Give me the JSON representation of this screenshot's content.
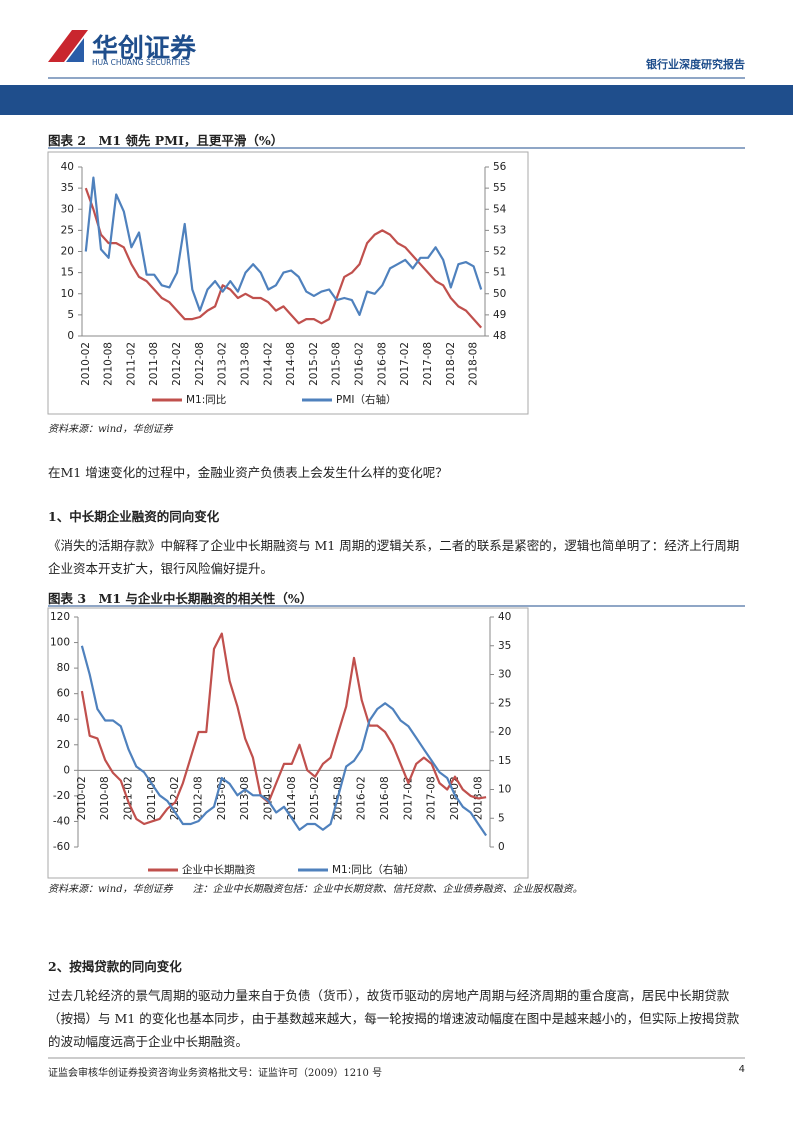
{
  "header": {
    "brand": "华创证券",
    "brand_en": "HUA CHUANG SECURITIES",
    "report_type": "银行业深度研究报告"
  },
  "chart_data": [
    {
      "type": "line",
      "title": "图表 2　M1 领先 PMI，且更平滑（%）",
      "categories": [
        "2010-02",
        null,
        null,
        "2010-08",
        null,
        null,
        "2011-02",
        null,
        null,
        "2011-08",
        null,
        null,
        "2012-02",
        null,
        null,
        "2012-08",
        null,
        null,
        "2013-02",
        null,
        null,
        "2013-08",
        null,
        null,
        "2014-02",
        null,
        null,
        "2014-08",
        null,
        null,
        "2015-02",
        null,
        null,
        "2015-08",
        null,
        null,
        "2016-02",
        null,
        null,
        "2016-08",
        null,
        null,
        "2017-02",
        null,
        null,
        "2017-08",
        null,
        null,
        "2018-02",
        null,
        null,
        "2018-08",
        null
      ],
      "series": [
        {
          "name": "M1:同比",
          "color": "#c0504d",
          "values": [
            35,
            30,
            24,
            22,
            22,
            21,
            17,
            14,
            13,
            11,
            9,
            8,
            6,
            4,
            4,
            4.5,
            6,
            7,
            12,
            11,
            9,
            10,
            9,
            9,
            8,
            6,
            7,
            5,
            3,
            4,
            4,
            3,
            4,
            9,
            14,
            15,
            17,
            22,
            24,
            25,
            24,
            22,
            21,
            19,
            17,
            15,
            13,
            12,
            9,
            7,
            6,
            4,
            2
          ]
        },
        {
          "name": "PMI（右轴）",
          "color": "#4f81bd",
          "axis": "y2",
          "values": [
            52,
            55.5,
            52.1,
            51.7,
            54.7,
            53.9,
            52.2,
            52.9,
            50.9,
            50.9,
            50.4,
            50.3,
            51,
            53.3,
            50.2,
            49.2,
            50.2,
            50.6,
            50.1,
            50.6,
            50.1,
            51,
            51.4,
            51,
            50.2,
            50.4,
            51,
            51.1,
            50.8,
            50.1,
            49.9,
            50.1,
            50.2,
            49.7,
            49.8,
            49.7,
            49,
            50.1,
            50,
            50.4,
            51.2,
            51.4,
            51.6,
            51.2,
            51.7,
            51.7,
            52.2,
            51.6,
            50.3,
            51.4,
            51.5,
            51.3,
            50.2
          ]
        }
      ],
      "ylim": [
        0,
        40
      ],
      "yticks": [
        0,
        5,
        10,
        15,
        20,
        25,
        30,
        35,
        40
      ],
      "y2lim": [
        48,
        56
      ],
      "y2ticks": [
        48,
        49,
        50,
        51,
        52,
        53,
        54,
        55,
        56
      ],
      "grid": false
    },
    {
      "type": "line",
      "title": "图表 3　M1 与企业中长期融资的相关性（%）",
      "categories": [
        "2010-02",
        null,
        null,
        "2010-08",
        null,
        null,
        "2011-02",
        null,
        null,
        "2011-08",
        null,
        null,
        "2012-02",
        null,
        null,
        "2012-08",
        null,
        null,
        "2013-02",
        null,
        null,
        "2013-08",
        null,
        null,
        "2014-02",
        null,
        null,
        "2014-08",
        null,
        null,
        "2015-02",
        null,
        null,
        "2015-08",
        null,
        null,
        "2016-02",
        null,
        null,
        "2016-08",
        null,
        null,
        "2017-02",
        null,
        null,
        "2017-08",
        null,
        null,
        "2018-02",
        null,
        null,
        "2018-08",
        null
      ],
      "series": [
        {
          "name": "企业中长期融资",
          "color": "#c0504d",
          "values": [
            62,
            27,
            25,
            8,
            -2,
            -8,
            -25,
            -38,
            -42,
            -40,
            -38,
            -30,
            -25,
            -10,
            10,
            30,
            30,
            95,
            107,
            70,
            50,
            25,
            10,
            -20,
            -25,
            -10,
            5,
            5,
            20,
            0,
            -5,
            5,
            10,
            30,
            50,
            88,
            55,
            35,
            35,
            30,
            20,
            5,
            -10,
            5,
            10,
            5,
            -10,
            -15,
            -5,
            -15,
            -20,
            -22,
            -21
          ]
        },
        {
          "name": "M1:同比（右轴）",
          "color": "#4f81bd",
          "axis": "y2",
          "values": [
            35,
            30,
            24,
            22,
            22,
            21,
            17,
            14,
            13,
            11,
            9,
            8,
            6,
            4,
            4,
            4.5,
            6,
            7,
            12,
            11,
            9,
            10,
            9,
            9,
            8,
            6,
            7,
            5,
            3,
            4,
            4,
            3,
            4,
            9,
            14,
            15,
            17,
            22,
            24,
            25,
            24,
            22,
            21,
            19,
            17,
            15,
            13,
            12,
            9,
            7,
            6,
            4,
            2
          ]
        }
      ],
      "ylim": [
        -60,
        120
      ],
      "yticks": [
        -60,
        -40,
        -20,
        0,
        20,
        40,
        60,
        80,
        100,
        120
      ],
      "y2lim": [
        0,
        40
      ],
      "y2ticks": [
        0,
        5,
        10,
        15,
        20,
        25,
        30,
        35,
        40
      ],
      "grid": false
    }
  ],
  "sources": [
    "资料来源：wind，华创证券",
    "资料来源：wind，华创证券　　注：企业中长期融资包括：企业中长期贷款、信托贷款、企业债券融资、企业股权融资。"
  ],
  "paragraphs": [
    "在M1 增速变化的过程中，金融业资产负债表上会发生什么样的变化呢？",
    "《消失的活期存款》中解释了企业中长期融资与 M1 周期的逻辑关系，二者的联系是紧密的，逻辑也简单明了：经济上行周期企业资本开支扩大，银行风险偏好提升。",
    "过去几轮经济的景气周期的驱动力量来自于负债（货币），故货币驱动的房地产周期与经济周期的重合度高，居民中长期贷款（按揭）与 M1 的变化也基本同步，由于基数越来越大，每一轮按揭的增速波动幅度在图中是越来越小的，但实际上按揭贷款的波动幅度远高于企业中长期融资。"
  ],
  "headings": [
    "1、中长期企业融资的同向变化",
    "2、按揭贷款的同向变化"
  ],
  "footer": {
    "text": "证监会审核华创证券投资咨询业务资格批文号：证监许可（2009）1210 号",
    "page": "4"
  }
}
